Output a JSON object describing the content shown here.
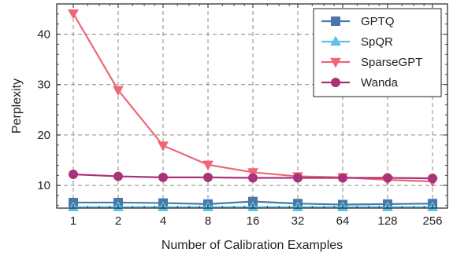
{
  "chart_data": {
    "type": "line",
    "xlabel": "Number of Calibration Examples",
    "ylabel": "Perplexity",
    "categories": [
      "1",
      "2",
      "4",
      "8",
      "16",
      "32",
      "64",
      "128",
      "256"
    ],
    "ylim": [
      5.5,
      46
    ],
    "yticks": [
      10,
      20,
      30,
      40
    ],
    "x_scale": "log2",
    "grid": true,
    "legend_position": "top-right",
    "series": [
      {
        "name": "GPTQ",
        "color": "#4a78a8",
        "marker": "square",
        "values": [
          6.6,
          6.6,
          6.5,
          6.3,
          6.8,
          6.4,
          6.2,
          6.3,
          6.4
        ]
      },
      {
        "name": "SpQR",
        "color": "#5bc2e7",
        "marker": "triangle-up",
        "values": [
          5.7,
          5.7,
          5.7,
          5.7,
          5.7,
          5.7,
          5.7,
          5.7,
          5.7
        ]
      },
      {
        "name": "SparseGPT",
        "color": "#ee6677",
        "marker": "triangle-down",
        "values": [
          44.1,
          28.9,
          17.9,
          14.1,
          12.6,
          11.8,
          11.6,
          11.1,
          10.8
        ]
      },
      {
        "name": "Wanda",
        "color": "#aa3377",
        "marker": "circle",
        "values": [
          12.2,
          11.8,
          11.6,
          11.6,
          11.5,
          11.5,
          11.5,
          11.5,
          11.4
        ]
      }
    ]
  }
}
